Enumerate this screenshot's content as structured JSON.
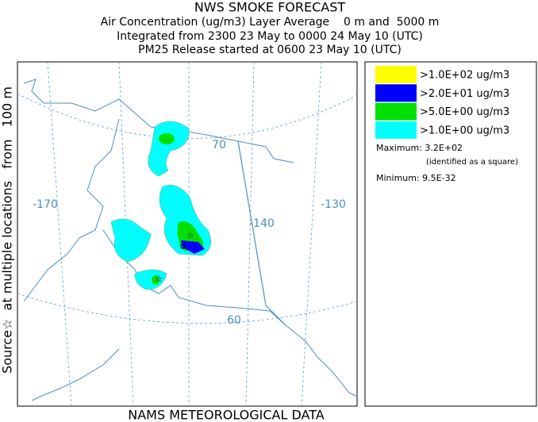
{
  "header": {
    "title": "NWS SMOKE FORECAST",
    "lines": [
      "Air Concentration (ug/m3) Layer Average    0 m and  5000 m",
      "Integrated from 2300 23 May to 0000 24 May 10 (UTC)",
      "PM25 Release started at 0600 23 May 10 (UTC)"
    ]
  },
  "side_label": "Source☆  at multiple locations   from   100 m",
  "footer": "NAMS METEOROLOGICAL DATA",
  "map": {
    "labels": [
      "-170",
      "-140",
      "-130",
      "70",
      "60"
    ]
  },
  "legend": {
    "items": [
      {
        "label": ">1.0E+02 ug/m3",
        "color": "#ffff00"
      },
      {
        "label": ">2.0E+01 ug/m3",
        "color": "#0000ff"
      },
      {
        "label": ">5.0E+00 ug/m3",
        "color": "#00e000"
      },
      {
        "label": ">1.0E+00 ug/m3",
        "color": "#00ffff"
      }
    ],
    "maximum": "Maximum: 3.2E+02",
    "maximum_note": "(identified as a square)",
    "minimum": "Minimum: 9.5E-32"
  }
}
